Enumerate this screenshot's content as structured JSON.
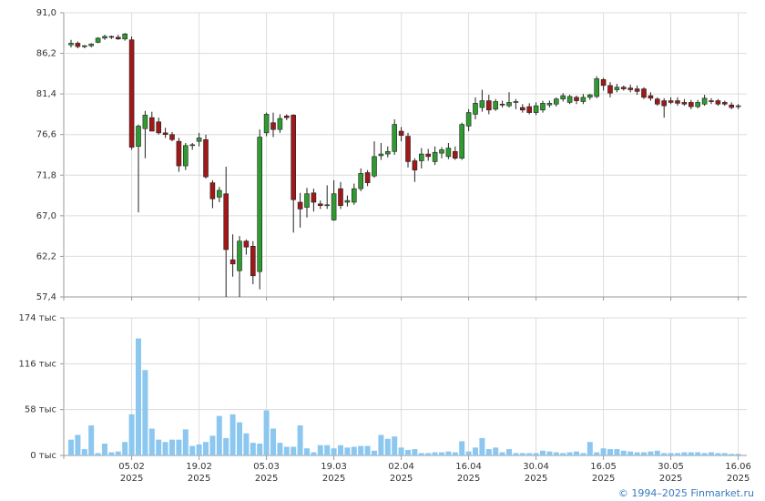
{
  "chart_data": [
    {
      "type": "candlestick",
      "up_color": "#2f9a2f",
      "down_color": "#a01818",
      "grid": true,
      "ylim": [
        57.4,
        91.0
      ],
      "yticks": [
        {
          "value": 57.4,
          "label": "57,4"
        },
        {
          "value": 62.2,
          "label": "62,2"
        },
        {
          "value": 67.0,
          "label": "67,0"
        },
        {
          "value": 71.8,
          "label": "71,8"
        },
        {
          "value": 76.6,
          "label": "76,6"
        },
        {
          "value": 81.4,
          "label": "81,4"
        },
        {
          "value": 86.2,
          "label": "86,2"
        },
        {
          "value": 91.0,
          "label": "91,0"
        }
      ],
      "open": [
        87.2,
        87.4,
        87.0,
        87.1,
        87.5,
        88.0,
        88.2,
        88.1,
        87.9,
        87.8,
        75.2,
        77.3,
        78.6,
        78.1,
        76.8,
        76.6,
        75.8,
        72.9,
        75.3,
        75.8,
        76.0,
        70.9,
        69.2,
        69.6,
        61.8,
        60.5,
        64.0,
        63.4,
        60.4,
        76.8,
        78.0,
        77.2,
        78.8,
        78.9,
        68.6,
        68.0,
        69.7,
        68.4,
        68.2,
        66.5,
        70.2,
        68.6,
        68.6,
        70.2,
        72.1,
        71.7,
        74.1,
        74.3,
        74.6,
        77.0,
        76.4,
        73.5,
        73.5,
        74.3,
        73.4,
        74.4,
        74.0,
        74.6,
        73.8,
        77.6,
        79.0,
        79.8,
        80.6,
        79.6,
        80.2,
        80.0,
        80.4,
        79.8,
        79.9,
        79.2,
        79.5,
        80.1,
        80.2,
        80.8,
        80.4,
        81.0,
        80.5,
        81.0,
        81.1,
        83.1,
        82.4,
        81.9,
        82.2,
        82.1,
        82.0,
        82.0,
        81.2,
        80.8,
        80.6,
        80.6,
        80.6,
        80.4,
        80.4,
        79.9,
        80.2,
        80.6,
        80.6,
        80.4,
        80.1,
        79.9
      ],
      "high": [
        87.8,
        87.6,
        87.2,
        87.4,
        88.1,
        88.4,
        88.3,
        88.4,
        88.6,
        88.2,
        77.8,
        79.4,
        79.3,
        78.6,
        77.4,
        76.9,
        76.2,
        75.6,
        75.6,
        76.8,
        76.6,
        71.2,
        70.4,
        72.8,
        64.8,
        64.6,
        64.2,
        64.0,
        77.2,
        79.2,
        79.2,
        79.0,
        79.0,
        79.0,
        69.7,
        70.3,
        70.2,
        68.8,
        70.6,
        71.2,
        71.0,
        69.4,
        70.8,
        72.6,
        72.4,
        75.8,
        75.6,
        75.2,
        78.4,
        77.5,
        76.8,
        73.8,
        75.0,
        74.9,
        75.2,
        75.1,
        75.6,
        75.2,
        78.0,
        79.6,
        81.0,
        81.9,
        81.3,
        80.8,
        80.6,
        81.6,
        80.8,
        80.2,
        80.3,
        80.4,
        80.6,
        80.6,
        81.0,
        81.5,
        81.3,
        81.2,
        81.4,
        81.4,
        83.5,
        83.3,
        82.8,
        82.6,
        82.4,
        82.5,
        82.4,
        82.2,
        81.6,
        81.0,
        80.9,
        81.0,
        81.0,
        80.8,
        80.7,
        80.7,
        81.3,
        80.9,
        80.8,
        80.6,
        80.4,
        80.2
      ],
      "low": [
        86.9,
        86.8,
        86.8,
        86.9,
        87.4,
        87.8,
        87.9,
        87.8,
        87.7,
        74.8,
        67.4,
        73.8,
        77.0,
        76.6,
        76.2,
        75.8,
        72.2,
        72.4,
        74.8,
        75.2,
        71.4,
        67.9,
        68.6,
        57.4,
        59.8,
        57.4,
        62.4,
        58.9,
        58.3,
        76.4,
        76.3,
        76.8,
        78.3,
        65.0,
        65.6,
        66.8,
        67.5,
        67.8,
        67.8,
        66.4,
        67.8,
        68.1,
        68.3,
        69.9,
        70.5,
        71.5,
        73.6,
        73.9,
        74.2,
        75.8,
        72.7,
        71.0,
        72.6,
        73.5,
        73.0,
        73.8,
        73.7,
        73.6,
        73.6,
        77.0,
        78.4,
        79.3,
        79.0,
        79.4,
        79.8,
        79.8,
        79.6,
        79.2,
        79.0,
        78.9,
        79.2,
        79.8,
        79.9,
        80.5,
        80.2,
        80.2,
        80.2,
        80.7,
        80.9,
        81.8,
        81.0,
        81.6,
        81.8,
        81.6,
        81.3,
        80.8,
        80.6,
        80.0,
        78.6,
        80.2,
        80.0,
        80.0,
        79.6,
        79.7,
        80.0,
        80.2,
        80.0,
        80.0,
        79.6,
        79.6
      ],
      "close": [
        87.4,
        87.0,
        87.1,
        87.3,
        88.0,
        88.2,
        88.1,
        87.9,
        88.5,
        75.1,
        77.6,
        78.9,
        77.0,
        76.8,
        76.6,
        76.0,
        72.9,
        75.3,
        75.4,
        76.2,
        71.6,
        69.0,
        70.0,
        63.0,
        61.3,
        64.0,
        63.3,
        59.9,
        76.3,
        79.0,
        77.2,
        78.5,
        78.6,
        68.9,
        67.8,
        69.6,
        68.6,
        68.2,
        68.3,
        69.6,
        68.2,
        68.8,
        70.2,
        72.0,
        70.9,
        74.0,
        74.3,
        74.6,
        77.8,
        76.5,
        73.4,
        72.4,
        74.3,
        74.0,
        74.5,
        74.8,
        75.0,
        73.8,
        77.8,
        79.2,
        80.3,
        80.6,
        79.5,
        80.5,
        80.1,
        80.4,
        80.5,
        79.5,
        79.2,
        80.0,
        80.3,
        80.3,
        80.8,
        81.2,
        81.1,
        80.6,
        81.0,
        81.3,
        83.2,
        82.4,
        81.5,
        82.2,
        82.0,
        81.9,
        81.7,
        81.0,
        80.9,
        80.2,
        80.0,
        80.4,
        80.3,
        80.2,
        79.9,
        80.4,
        80.9,
        80.5,
        80.2,
        80.2,
        79.8,
        80.0
      ]
    },
    {
      "type": "bar",
      "color": "#8cc7f0",
      "grid": true,
      "ylim": [
        0,
        174
      ],
      "yticks": [
        {
          "value": 0,
          "label": "0 тыс"
        },
        {
          "value": 58,
          "label": "58 тыс"
        },
        {
          "value": 116,
          "label": "116 тыс"
        },
        {
          "value": 174,
          "label": "174 тыс"
        }
      ],
      "categories": [
        null,
        null,
        null,
        null,
        null,
        null,
        null,
        null,
        null,
        [
          "05.02",
          "2025"
        ],
        null,
        null,
        null,
        null,
        null,
        null,
        null,
        null,
        null,
        [
          "19.02",
          "2025"
        ],
        null,
        null,
        null,
        null,
        null,
        null,
        null,
        null,
        null,
        [
          "05.03",
          "2025"
        ],
        null,
        null,
        null,
        null,
        null,
        null,
        null,
        null,
        null,
        [
          "19.03",
          "2025"
        ],
        null,
        null,
        null,
        null,
        null,
        null,
        null,
        null,
        null,
        [
          "02.04",
          "2025"
        ],
        null,
        null,
        null,
        null,
        null,
        null,
        null,
        null,
        null,
        [
          "16.04",
          "2025"
        ],
        null,
        null,
        null,
        null,
        null,
        null,
        null,
        null,
        null,
        [
          "30.04",
          "2025"
        ],
        null,
        null,
        null,
        null,
        null,
        null,
        null,
        null,
        null,
        [
          "16.05",
          "2025"
        ],
        null,
        null,
        null,
        null,
        null,
        null,
        null,
        null,
        null,
        [
          "30.05",
          "2025"
        ],
        null,
        null,
        null,
        null,
        null,
        null,
        null,
        null,
        null,
        [
          "16.06",
          "2025"
        ]
      ],
      "values": [
        20,
        26,
        8,
        38,
        3,
        15,
        4,
        5,
        17,
        52,
        148,
        108,
        34,
        20,
        17,
        20,
        20,
        33,
        12,
        14,
        17,
        25,
        50,
        22,
        52,
        42,
        28,
        16,
        15,
        57,
        34,
        16,
        11,
        11,
        38,
        9,
        4,
        13,
        13,
        9,
        13,
        10,
        11,
        12,
        12,
        6,
        26,
        21,
        24,
        10,
        7,
        8,
        3,
        3,
        4,
        4,
        5,
        4,
        18,
        5,
        10,
        22,
        8,
        10,
        4,
        8,
        3,
        3,
        3,
        3,
        6,
        5,
        4,
        3,
        4,
        5,
        3,
        17,
        4,
        9,
        8,
        8,
        6,
        5,
        4,
        4,
        5,
        6,
        3,
        3,
        3,
        4,
        4,
        4,
        3,
        4,
        3,
        3,
        2,
        2
      ]
    }
  ],
  "footer": "© 1994–2025 Finmarket.ru"
}
